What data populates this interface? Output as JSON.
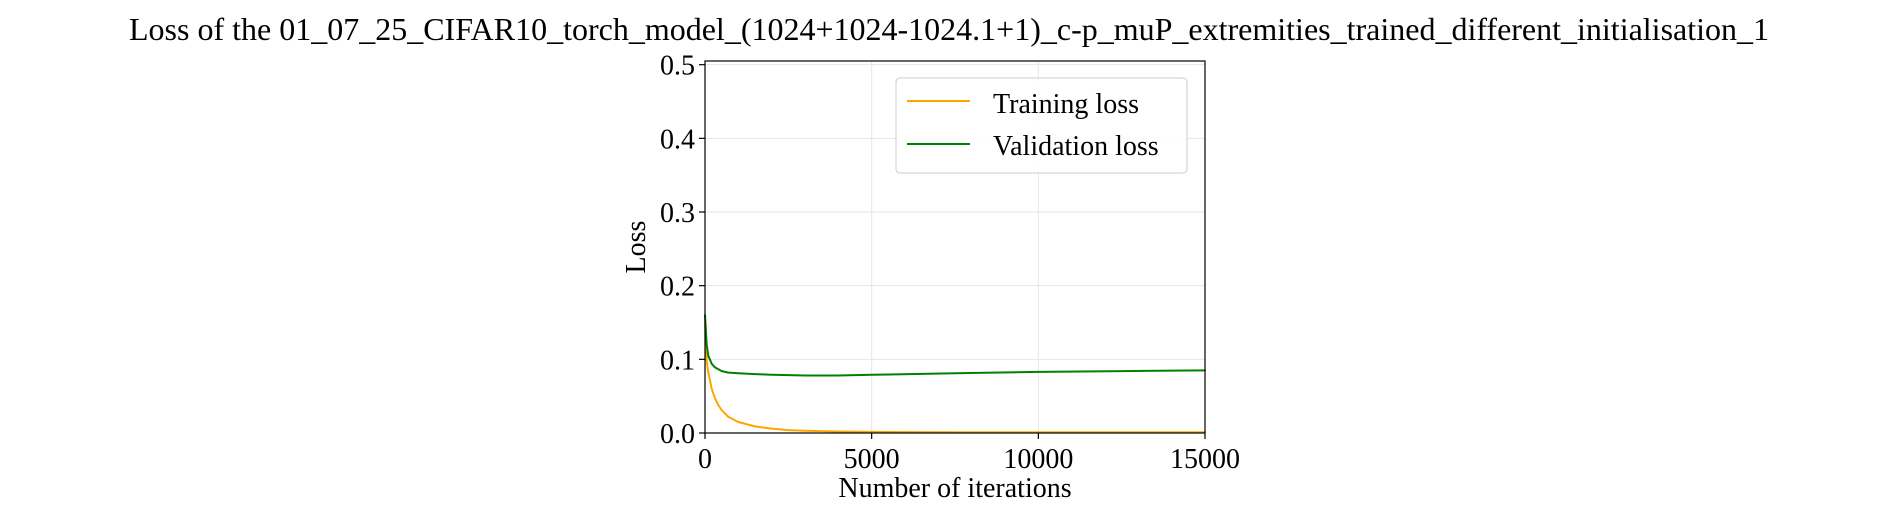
{
  "chart_data": {
    "type": "line",
    "title": "Loss of the 01_07_25_CIFAR10_torch_model_(1024+1024-1024.1+1)_c-p_muP_extremities_trained_different_initialisation_1",
    "xlabel": "Number of iterations",
    "ylabel": "Loss",
    "xlim": [
      0,
      15000
    ],
    "ylim": [
      0,
      0.505
    ],
    "xticks": [
      0,
      5000,
      10000,
      15000
    ],
    "xtick_labels": [
      "0",
      "5000",
      "10000",
      "15000"
    ],
    "yticks": [
      0.0,
      0.1,
      0.2,
      0.3,
      0.4,
      0.5
    ],
    "ytick_labels": [
      "0.0",
      "0.1",
      "0.2",
      "0.3",
      "0.4",
      "0.5"
    ],
    "grid": true,
    "legend_position": "top-right",
    "series": [
      {
        "name": "Training loss",
        "color": "#ffa500",
        "x": [
          0,
          50,
          100,
          200,
          300,
          400,
          500,
          700,
          1000,
          1500,
          2000,
          2500,
          3000,
          4000,
          5000,
          7500,
          10000,
          12500,
          15000
        ],
        "y": [
          0.15,
          0.098,
          0.082,
          0.06,
          0.047,
          0.038,
          0.031,
          0.022,
          0.015,
          0.009,
          0.006,
          0.004,
          0.003,
          0.002,
          0.0015,
          0.001,
          0.001,
          0.001,
          0.001
        ]
      },
      {
        "name": "Validation loss",
        "color": "#008000",
        "x": [
          0,
          50,
          100,
          200,
          300,
          500,
          700,
          1000,
          1500,
          2000,
          3000,
          4000,
          5000,
          7500,
          10000,
          12500,
          15000
        ],
        "y": [
          0.16,
          0.12,
          0.105,
          0.094,
          0.089,
          0.084,
          0.082,
          0.081,
          0.08,
          0.079,
          0.078,
          0.078,
          0.079,
          0.081,
          0.083,
          0.084,
          0.085
        ]
      }
    ]
  }
}
